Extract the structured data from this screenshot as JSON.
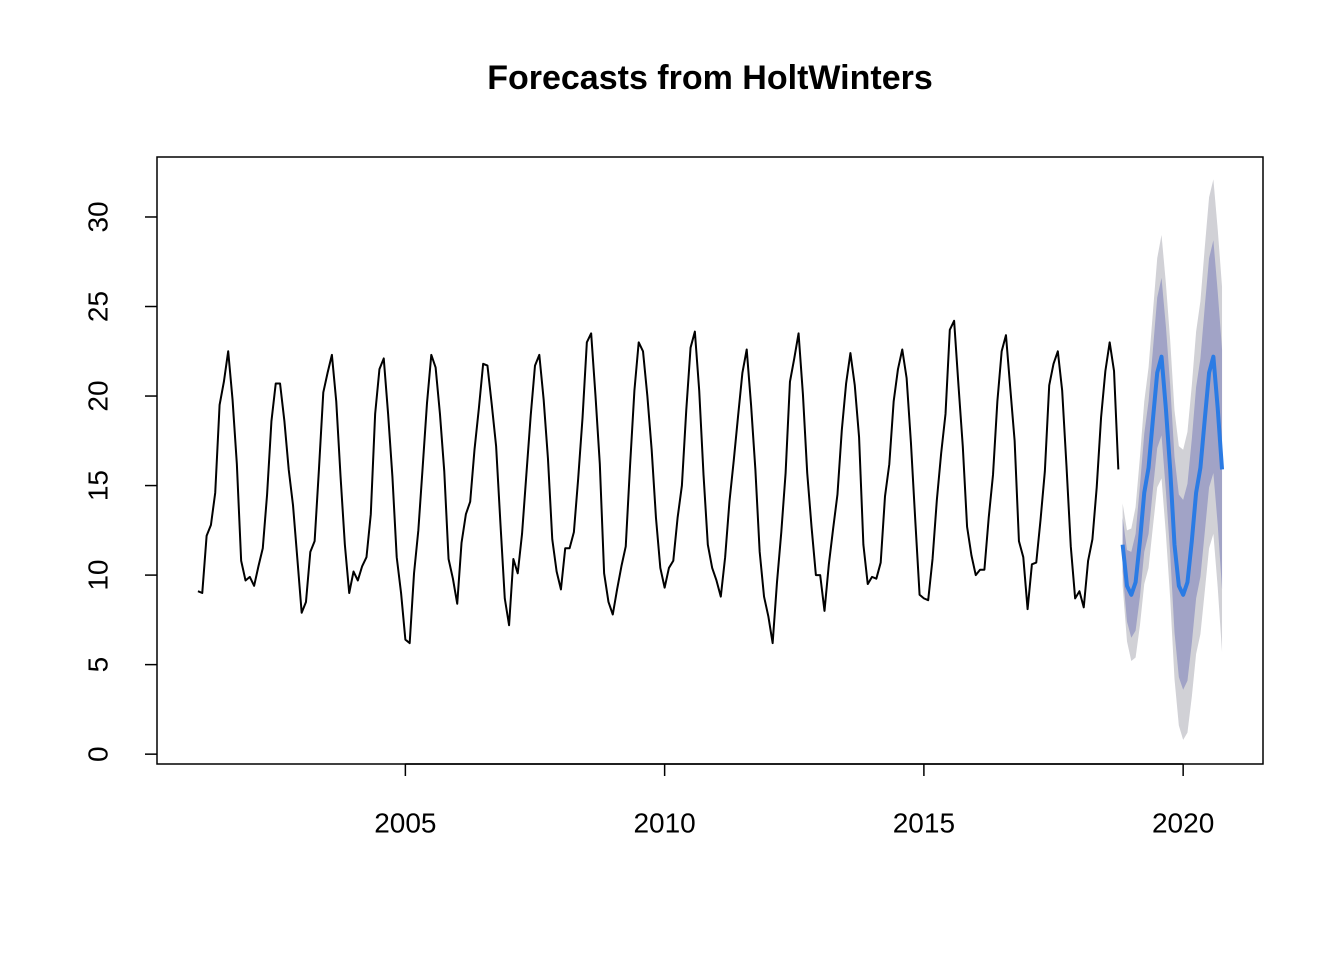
{
  "chart_data": {
    "type": "line",
    "title": "Forecasts from HoltWinters",
    "xlim": [
      2000.21,
      2021.54
    ],
    "ylim": [
      -0.55,
      33.35
    ],
    "xticks": [
      2005,
      2010,
      2015,
      2020
    ],
    "yticks": [
      0,
      5,
      10,
      15,
      20,
      25,
      30
    ],
    "series": [
      {
        "color": "#000000",
        "x": [
          2001,
          2001.083,
          2001.167,
          2001.25,
          2001.333,
          2001.417,
          2001.5,
          2001.583,
          2001.667,
          2001.75,
          2001.833,
          2001.917,
          2002,
          2002.083,
          2002.167,
          2002.25,
          2002.333,
          2002.417,
          2002.5,
          2002.583,
          2002.667,
          2002.75,
          2002.833,
          2002.917,
          2003,
          2003.083,
          2003.167,
          2003.25,
          2003.333,
          2003.417,
          2003.5,
          2003.583,
          2003.667,
          2003.75,
          2003.833,
          2003.917,
          2004,
          2004.083,
          2004.167,
          2004.25,
          2004.333,
          2004.417,
          2004.5,
          2004.583,
          2004.667,
          2004.75,
          2004.833,
          2004.917,
          2005,
          2005.083,
          2005.167,
          2005.25,
          2005.333,
          2005.417,
          2005.5,
          2005.583,
          2005.667,
          2005.75,
          2005.833,
          2005.917,
          2006,
          2006.083,
          2006.167,
          2006.25,
          2006.333,
          2006.417,
          2006.5,
          2006.583,
          2006.667,
          2006.75,
          2006.833,
          2006.917,
          2007,
          2007.083,
          2007.167,
          2007.25,
          2007.333,
          2007.417,
          2007.5,
          2007.583,
          2007.667,
          2007.75,
          2007.833,
          2007.917,
          2008,
          2008.083,
          2008.167,
          2008.25,
          2008.333,
          2008.417,
          2008.5,
          2008.583,
          2008.667,
          2008.75,
          2008.833,
          2008.917,
          2009,
          2009.083,
          2009.167,
          2009.25,
          2009.333,
          2009.417,
          2009.5,
          2009.583,
          2009.667,
          2009.75,
          2009.833,
          2009.917,
          2010,
          2010.083,
          2010.167,
          2010.25,
          2010.333,
          2010.417,
          2010.5,
          2010.583,
          2010.667,
          2010.75,
          2010.833,
          2010.917,
          2011,
          2011.083,
          2011.167,
          2011.25,
          2011.333,
          2011.417,
          2011.5,
          2011.583,
          2011.667,
          2011.75,
          2011.833,
          2011.917,
          2012,
          2012.083,
          2012.167,
          2012.25,
          2012.333,
          2012.417,
          2012.5,
          2012.583,
          2012.667,
          2012.75,
          2012.833,
          2012.917,
          2013,
          2013.083,
          2013.167,
          2013.25,
          2013.333,
          2013.417,
          2013.5,
          2013.583,
          2013.667,
          2013.75,
          2013.833,
          2013.917,
          2014,
          2014.083,
          2014.167,
          2014.25,
          2014.333,
          2014.417,
          2014.5,
          2014.583,
          2014.667,
          2014.75,
          2014.833,
          2014.917,
          2015,
          2015.083,
          2015.167,
          2015.25,
          2015.333,
          2015.417,
          2015.5,
          2015.583,
          2015.667,
          2015.75,
          2015.833,
          2015.917,
          2016,
          2016.083,
          2016.167,
          2016.25,
          2016.333,
          2016.417,
          2016.5,
          2016.583,
          2016.667,
          2016.75,
          2016.833,
          2016.917,
          2017,
          2017.083,
          2017.167,
          2017.25,
          2017.333,
          2017.417,
          2017.5,
          2017.583,
          2017.667,
          2017.75,
          2017.833,
          2017.917,
          2018,
          2018.083,
          2018.167,
          2018.25,
          2018.333,
          2018.417,
          2018.5,
          2018.583,
          2018.667,
          2018.75
        ],
        "values": [
          9.1,
          9.0,
          12.2,
          12.8,
          14.6,
          19.5,
          20.8,
          22.5,
          19.8,
          16.2,
          10.8,
          9.7,
          9.9,
          9.4,
          10.5,
          11.5,
          14.5,
          18.6,
          20.7,
          20.7,
          18.6,
          15.9,
          13.9,
          10.9,
          7.9,
          8.5,
          11.3,
          11.9,
          15.9,
          20.2,
          21.3,
          22.3,
          19.7,
          15.5,
          11.7,
          9.0,
          10.2,
          9.7,
          10.5,
          11.0,
          13.4,
          19.0,
          21.5,
          22.1,
          19.0,
          15.5,
          11.0,
          9.0,
          6.4,
          6.2,
          10.1,
          12.5,
          16.0,
          19.6,
          22.3,
          21.6,
          19.0,
          15.8,
          10.9,
          9.8,
          8.4,
          11.8,
          13.4,
          14.1,
          17.0,
          19.3,
          21.8,
          21.7,
          19.5,
          17.2,
          12.9,
          8.7,
          7.2,
          10.9,
          10.1,
          12.3,
          15.6,
          18.9,
          21.7,
          22.3,
          19.8,
          16.5,
          12.0,
          10.2,
          9.2,
          11.5,
          11.5,
          12.4,
          15.4,
          18.8,
          23.0,
          23.5,
          20.0,
          16.2,
          10.1,
          8.5,
          7.8,
          9.2,
          10.5,
          11.6,
          16.1,
          20.3,
          23.0,
          22.5,
          20.0,
          17.0,
          13.2,
          10.4,
          9.3,
          10.4,
          10.8,
          13.2,
          15.0,
          19.2,
          22.7,
          23.6,
          20.3,
          15.6,
          11.7,
          10.4,
          9.7,
          8.8,
          11.0,
          14.1,
          16.4,
          18.9,
          21.3,
          22.6,
          19.5,
          15.9,
          11.3,
          8.8,
          7.7,
          6.2,
          9.6,
          12.4,
          15.7,
          20.8,
          22.1,
          23.5,
          20.1,
          15.7,
          12.7,
          10.0,
          10.0,
          8.0,
          10.6,
          12.6,
          14.5,
          18.1,
          20.7,
          22.4,
          20.6,
          17.7,
          11.7,
          9.5,
          9.9,
          9.8,
          10.7,
          14.4,
          16.2,
          19.7,
          21.5,
          22.6,
          21.0,
          17.4,
          13.1,
          8.9,
          8.7,
          8.6,
          10.9,
          14.2,
          16.8,
          19.0,
          23.7,
          24.2,
          20.6,
          17.2,
          12.7,
          11.1,
          10.0,
          10.3,
          10.3,
          13.2,
          15.6,
          19.7,
          22.5,
          23.4,
          20.4,
          17.5,
          11.9,
          11.0,
          8.1,
          10.6,
          10.7,
          13.1,
          15.8,
          20.6,
          21.8,
          22.5,
          20.3,
          16.1,
          11.6,
          8.7,
          9.1,
          8.2,
          10.8,
          12.0,
          14.9,
          18.8,
          21.4,
          23.0,
          21.4,
          15.9
        ]
      },
      {
        "color": "#2b7be4",
        "x": [
          2018.833,
          2018.917,
          2019,
          2019.083,
          2019.167,
          2019.25,
          2019.333,
          2019.417,
          2019.5,
          2019.583,
          2019.667,
          2019.75,
          2019.833,
          2019.917,
          2020,
          2020.083,
          2020.167,
          2020.25,
          2020.333,
          2020.417,
          2020.5,
          2020.583,
          2020.667,
          2020.75
        ],
        "values": [
          11.7,
          9.4,
          8.9,
          9.6,
          11.9,
          14.6,
          16.0,
          18.7,
          21.3,
          22.2,
          19.3,
          15.9,
          11.7,
          9.4,
          8.9,
          9.6,
          11.9,
          14.6,
          16.0,
          18.7,
          21.3,
          22.2,
          19.3,
          15.9
        ],
        "bands": [
          {
            "color": "#d1d1d6",
            "lower": [
              9.4,
              6.3,
              5.2,
              5.4,
              7.2,
              9.5,
              10.4,
              12.7,
              14.9,
              15.4,
              12.3,
              8.7,
              4.2,
              1.6,
              0.8,
              1.2,
              3.2,
              5.6,
              6.7,
              9.1,
              11.5,
              12.3,
              9.3,
              5.7
            ],
            "upper": [
              14.0,
              12.5,
              12.6,
              13.8,
              16.6,
              19.7,
              21.6,
              24.7,
              27.7,
              29.0,
              26.3,
              23.1,
              19.2,
              17.2,
              17.0,
              18.0,
              20.6,
              23.6,
              25.3,
              28.3,
              31.1,
              32.1,
              29.3,
              26.1
            ]
          },
          {
            "color": "#a1a3c6",
            "lower": [
              10.2,
              7.4,
              6.5,
              6.9,
              8.8,
              11.3,
              12.3,
              14.8,
              17.1,
              17.8,
              14.7,
              11.2,
              6.8,
              4.3,
              3.6,
              4.1,
              6.2,
              8.7,
              9.9,
              12.4,
              14.9,
              15.7,
              12.8,
              9.2
            ],
            "upper": [
              13.2,
              11.4,
              11.3,
              12.3,
              15.0,
              17.9,
              19.7,
              22.6,
              25.5,
              26.6,
              23.9,
              20.6,
              16.6,
              14.5,
              14.2,
              15.1,
              17.6,
              20.5,
              22.1,
              25.0,
              27.7,
              28.7,
              25.8,
              22.6
            ]
          }
        ]
      }
    ]
  }
}
